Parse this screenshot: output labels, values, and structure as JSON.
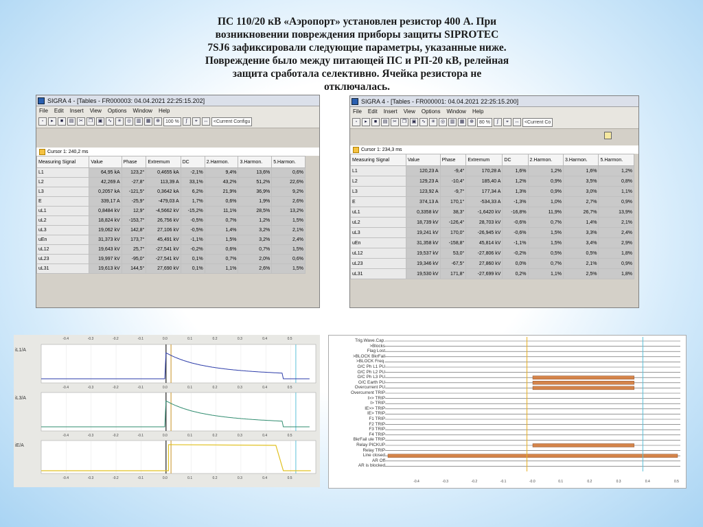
{
  "slide": {
    "title_lines": [
      "ПС 110/20 кВ «Аэропорт» установлен резистор 400 А. При",
      "возникновении повреждения приборы защиты SIPROTEC",
      "7SJ6 зафиксировали следующие параметры, указанные ниже.",
      "Повреждение было между питающей ПС и РП-20 кВ, релейная",
      "защита сработала селективно. Ячейка резистора не",
      "отключалась."
    ]
  },
  "left_window": {
    "title": "SIGRA 4 - [Tables - FR000003: 04.04.2021 22:25:15.202]",
    "menu": [
      "File",
      "Edit",
      "Insert",
      "View",
      "Options",
      "Window",
      "Help"
    ],
    "zoom": "100 %",
    "config": "<Current Configu",
    "cursor": "Cursor 1: 240,2 ms",
    "columns": [
      "Measuring Signal",
      "Value",
      "Phase",
      "Extremum",
      "DC",
      "2.Harmon.",
      "3.Harmon.",
      "5.Harmon."
    ],
    "rows": [
      [
        "L1",
        "64,95 kA",
        "123,2°",
        "0,4655 kA",
        "-2,1%",
        "9,4%",
        "13,6%",
        "0,6%"
      ],
      [
        "L2",
        "42,269 A",
        "-27,8°",
        "113,39 A",
        "33,1%",
        "43,2%",
        "51,2%",
        "22,6%"
      ],
      [
        "L3",
        "0,2057 kA",
        "-121,5°",
        "0,3642 kA",
        "6,2%",
        "21,9%",
        "36,9%",
        "9,2%"
      ],
      [
        "E",
        "339,17 A",
        "-25,9°",
        "-479,03 A",
        "1,7%",
        "0,6%",
        "1,9%",
        "2,6%"
      ],
      [
        "uL1",
        "0,8484 kV",
        "12,9°",
        "-4,5662 kV",
        "-15,2%",
        "11,1%",
        "28,5%",
        "13,2%"
      ],
      [
        "uL2",
        "18,824 kV",
        "-153,7°",
        "26,756 kV",
        "-0,5%",
        "0,7%",
        "1,2%",
        "1,5%"
      ],
      [
        "uL3",
        "19,062 kV",
        "142,8°",
        "27,106 kV",
        "-0,5%",
        "1,4%",
        "3,2%",
        "2,1%"
      ],
      [
        "uEn",
        "31,373 kV",
        "173,7°",
        "45,491 kV",
        "-1,1%",
        "1,5%",
        "3,2%",
        "2,4%"
      ],
      [
        "uL12",
        "19,643 kV",
        "25,7°",
        "-27,541 kV",
        "-0,2%",
        "0,6%",
        "0,7%",
        "1,5%"
      ],
      [
        "uL23",
        "19,997 kV",
        "-95,0°",
        "-27,541 kV",
        "0,1%",
        "0,7%",
        "2,0%",
        "0,6%"
      ],
      [
        "uL31",
        "19,613 kV",
        "144,5°",
        "27,690 kV",
        "0,1%",
        "1,1%",
        "2,6%",
        "1,5%"
      ]
    ]
  },
  "right_window": {
    "title": "SIGRA 4 - [Tables - FR000001: 04.04.2021 22:25:15.200]",
    "menu": [
      "File",
      "Edit",
      "Insert",
      "View",
      "Options",
      "Window",
      "Help"
    ],
    "zoom": "80 %",
    "config": "<Current Co",
    "cursor": "Cursor 1: 234,3 ms",
    "columns": [
      "Measuring Signal",
      "Value",
      "Phase",
      "Extremum",
      "DC",
      "2.Harmon.",
      "3.Harmon.",
      "5.Harmon."
    ],
    "rows": [
      [
        "L1",
        "120,23 A",
        "-9,4°",
        "170,28 A",
        "1,6%",
        "1,2%",
        "1,6%",
        "1,2%"
      ],
      [
        "L2",
        "129,23 A",
        "-10,4°",
        "185,40 A",
        "1,2%",
        "0,9%",
        "3,5%",
        "0,8%"
      ],
      [
        "L3",
        "123,92 A",
        "-9,7°",
        "177,34 A",
        "1,3%",
        "0,9%",
        "3,0%",
        "1,1%"
      ],
      [
        "E",
        "374,13 A",
        "170,1°",
        "-534,33 A",
        "-1,3%",
        "1,0%",
        "2,7%",
        "0,9%"
      ],
      [
        "uL1",
        "0,3358 kV",
        "38,3°",
        "-1,6420 kV",
        "-16,8%",
        "11,9%",
        "26,7%",
        "13,9%"
      ],
      [
        "uL2",
        "18,739 kV",
        "-126,4°",
        "28,703 kV",
        "-0,6%",
        "0,7%",
        "1,4%",
        "2,1%"
      ],
      [
        "uL3",
        "19,241 kV",
        "170,0°",
        "-26,945 kV",
        "-0,6%",
        "1,5%",
        "3,3%",
        "2,4%"
      ],
      [
        "uEn",
        "31,358 kV",
        "-158,8°",
        "45,814 kV",
        "-1,1%",
        "1,5%",
        "3,4%",
        "2,9%"
      ],
      [
        "uL12",
        "19,537 kV",
        "53,0°",
        "-27,806 kV",
        "-0,2%",
        "0,5%",
        "0,5%",
        "1,8%"
      ],
      [
        "uL23",
        "19,346 kV",
        "-67,5°",
        "27,860 kV",
        "0,0%",
        "0,7%",
        "2,1%",
        "0,9%"
      ],
      [
        "uL31",
        "19,530 kV",
        "171,8°",
        "-27,699 kV",
        "0,2%",
        "1,1%",
        "2,5%",
        "1,8%"
      ]
    ]
  },
  "analog_plot": {
    "channels": [
      "iL1/A",
      "iL3/A",
      "iE/A"
    ],
    "ticks": [
      "-0.4",
      "-0.3",
      "-0.2",
      "-0.1",
      "0.0",
      "0.1",
      "0.2",
      "0.3",
      "0.4",
      "0.5"
    ],
    "colors": {
      "ch1": "#2a3aa8",
      "ch2": "#2e8b6e",
      "ch3": "#e0c020",
      "cursor": "#5bc0d8"
    }
  },
  "binary_plot": {
    "signals": [
      "Trig.Wave.Cap.",
      ">Blocks",
      "Flag Lost",
      ">BLOCK BkrFail",
      ">BLOCK Freq.",
      "O/C Ph L1 PU",
      "O/C Ph L2 PU",
      "O/C Ph L3 PU",
      "O/C Earth PU",
      "Overcurrent PU",
      "Overcurrent TRIP",
      "I>> TRIP",
      "I> TRIP",
      "IE>> TRIP",
      "IE> TRIP",
      "F1 TRIP",
      "F2 TRIP",
      "F3 TRIP",
      "F4 TRIP",
      "BkrFail ule TRIP",
      "Relay PICKUP",
      "Relay TRIP",
      "Line closed",
      "AR Off",
      "AR is blocked"
    ],
    "ticks": [
      "-0.4",
      "-0.3",
      "-0.2",
      "-0.1",
      "-0.0",
      "0.1",
      "0.2",
      "0.3",
      "0.4",
      "0.5"
    ],
    "colors": {
      "bar": "#d4844a",
      "cursor1": "#e8b020",
      "cursor2": "#5bc0d8"
    }
  }
}
